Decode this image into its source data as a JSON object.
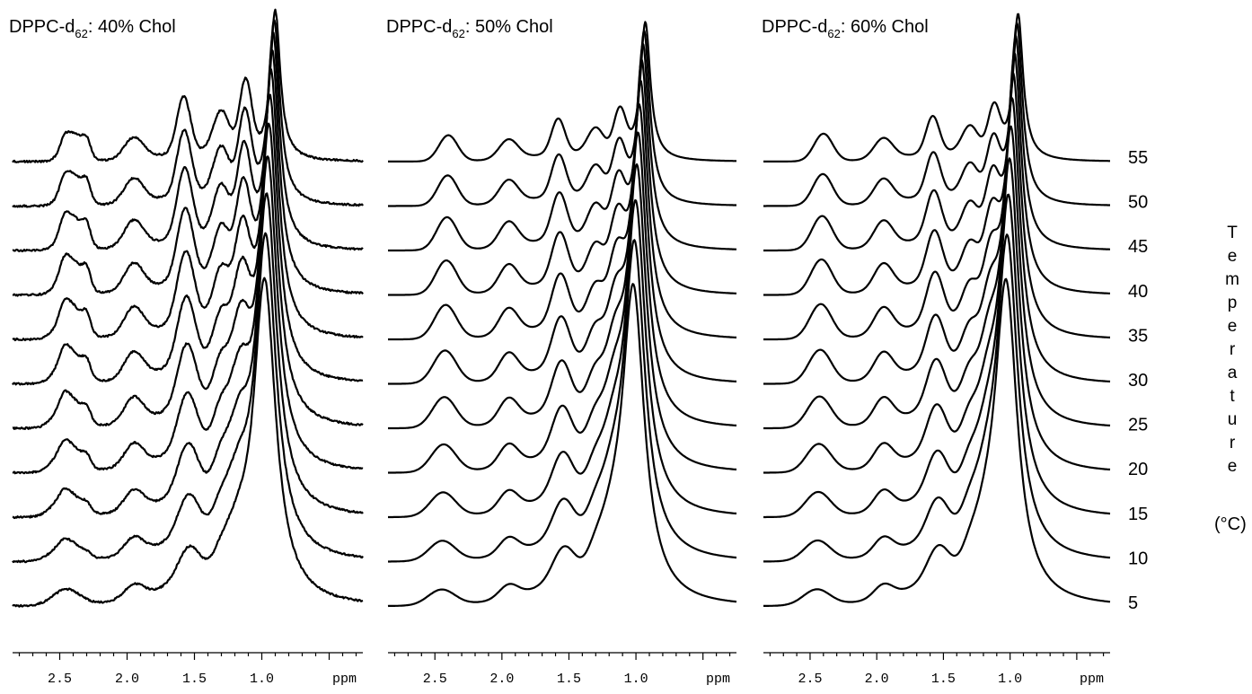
{
  "chart_data": {
    "type": "line",
    "description_kind": "stacked 1D 2H/1H NMR spectra",
    "y_axis_label_letters": [
      "T",
      "e",
      "m",
      "p",
      "e",
      "r",
      "a",
      "t",
      "u",
      "r",
      "e"
    ],
    "y_axis_unit": "(°C)",
    "temperatures": [
      "55",
      "50",
      "45",
      "40",
      "35",
      "30",
      "25",
      "20",
      "15",
      "10",
      "5"
    ],
    "x_axis": {
      "unit_label": "ppm",
      "tick_labels": [
        "2.5",
        "2.0",
        "1.5",
        "1.0"
      ],
      "tick_values": [
        2.5,
        2.0,
        1.5,
        1.0
      ],
      "range": [
        2.85,
        0.25
      ],
      "reversed": true
    },
    "panels": [
      {
        "title_main": "DPPC-d",
        "title_sub": "62",
        "title_rest": ": 40% Chol",
        "peak_ppm_low_temp": 0.98,
        "peak_ppm_high_temp": 0.9
      },
      {
        "title_main": "DPPC-d",
        "title_sub": "62",
        "title_rest": ": 50% Chol",
        "peak_ppm_low_temp": 1.02,
        "peak_ppm_high_temp": 0.93
      },
      {
        "title_main": "DPPC-d",
        "title_sub": "62",
        "title_rest": ": 60% Chol",
        "peak_ppm_low_temp": 1.03,
        "peak_ppm_high_temp": 0.94
      }
    ]
  }
}
